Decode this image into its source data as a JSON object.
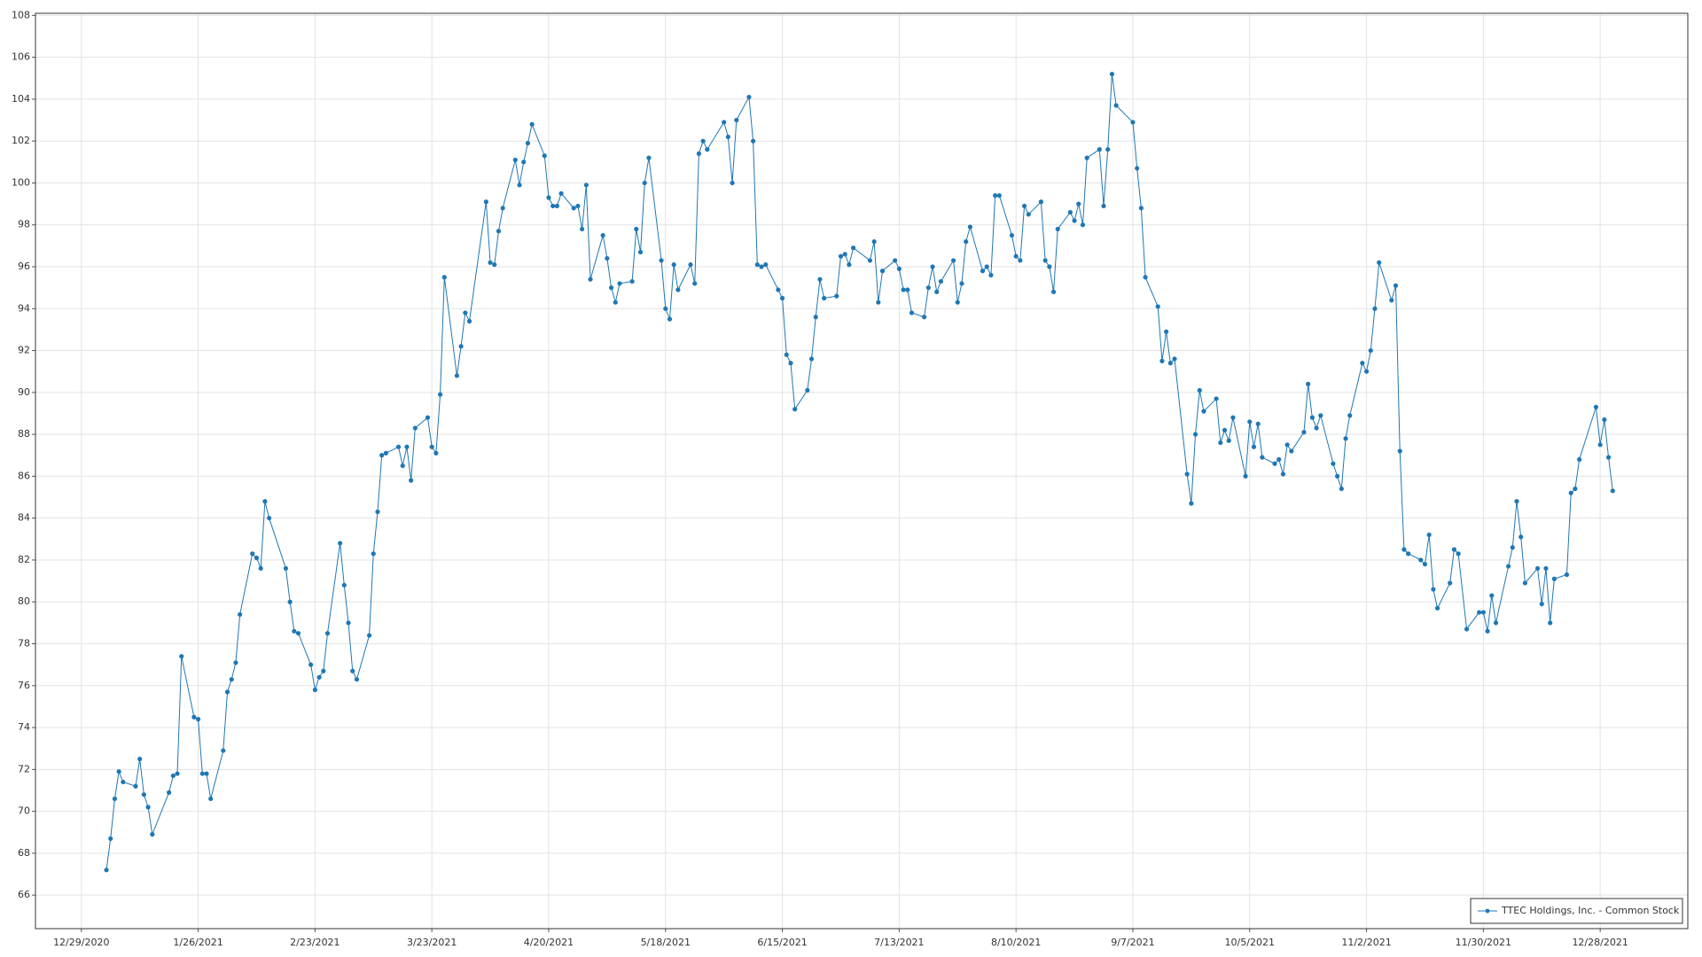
{
  "chart_data": {
    "type": "line",
    "x": [
      "1/4/2021",
      "1/5/2021",
      "1/6/2021",
      "1/7/2021",
      "1/8/2021",
      "1/11/2021",
      "1/12/2021",
      "1/13/2021",
      "1/14/2021",
      "1/15/2021",
      "1/19/2021",
      "1/20/2021",
      "1/21/2021",
      "1/22/2021",
      "1/25/2021",
      "1/26/2021",
      "1/27/2021",
      "1/28/2021",
      "1/29/2021",
      "2/1/2021",
      "2/2/2021",
      "2/3/2021",
      "2/4/2021",
      "2/5/2021",
      "2/8/2021",
      "2/9/2021",
      "2/10/2021",
      "2/11/2021",
      "2/12/2021",
      "2/16/2021",
      "2/17/2021",
      "2/18/2021",
      "2/19/2021",
      "2/22/2021",
      "2/23/2021",
      "2/24/2021",
      "2/25/2021",
      "2/26/2021",
      "3/1/2021",
      "3/2/2021",
      "3/3/2021",
      "3/4/2021",
      "3/5/2021",
      "3/8/2021",
      "3/9/2021",
      "3/10/2021",
      "3/11/2021",
      "3/12/2021",
      "3/15/2021",
      "3/16/2021",
      "3/17/2021",
      "3/18/2021",
      "3/19/2021",
      "3/22/2021",
      "3/23/2021",
      "3/24/2021",
      "3/25/2021",
      "3/26/2021",
      "3/29/2021",
      "3/30/2021",
      "3/31/2021",
      "4/1/2021",
      "4/5/2021",
      "4/6/2021",
      "4/7/2021",
      "4/8/2021",
      "4/9/2021",
      "4/12/2021",
      "4/13/2021",
      "4/14/2021",
      "4/15/2021",
      "4/16/2021",
      "4/19/2021",
      "4/20/2021",
      "4/21/2021",
      "4/22/2021",
      "4/23/2021",
      "4/26/2021",
      "4/27/2021",
      "4/28/2021",
      "4/29/2021",
      "4/30/2021",
      "5/3/2021",
      "5/4/2021",
      "5/5/2021",
      "5/6/2021",
      "5/7/2021",
      "5/10/2021",
      "5/11/2021",
      "5/12/2021",
      "5/13/2021",
      "5/14/2021",
      "5/17/2021",
      "5/18/2021",
      "5/19/2021",
      "5/20/2021",
      "5/21/2021",
      "5/24/2021",
      "5/25/2021",
      "5/26/2021",
      "5/27/2021",
      "5/28/2021",
      "6/1/2021",
      "6/2/2021",
      "6/3/2021",
      "6/4/2021",
      "6/7/2021",
      "6/8/2021",
      "6/9/2021",
      "6/10/2021",
      "6/11/2021",
      "6/14/2021",
      "6/15/2021",
      "6/16/2021",
      "6/17/2021",
      "6/18/2021",
      "6/21/2021",
      "6/22/2021",
      "6/23/2021",
      "6/24/2021",
      "6/25/2021",
      "6/28/2021",
      "6/29/2021",
      "6/30/2021",
      "7/1/2021",
      "7/2/2021",
      "7/6/2021",
      "7/7/2021",
      "7/8/2021",
      "7/9/2021",
      "7/12/2021",
      "7/13/2021",
      "7/14/2021",
      "7/15/2021",
      "7/16/2021",
      "7/19/2021",
      "7/20/2021",
      "7/21/2021",
      "7/22/2021",
      "7/23/2021",
      "7/26/2021",
      "7/27/2021",
      "7/28/2021",
      "7/29/2021",
      "7/30/2021",
      "8/2/2021",
      "8/3/2021",
      "8/4/2021",
      "8/5/2021",
      "8/6/2021",
      "8/9/2021",
      "8/10/2021",
      "8/11/2021",
      "8/12/2021",
      "8/13/2021",
      "8/16/2021",
      "8/17/2021",
      "8/18/2021",
      "8/19/2021",
      "8/20/2021",
      "8/23/2021",
      "8/24/2021",
      "8/25/2021",
      "8/26/2021",
      "8/27/2021",
      "8/30/2021",
      "8/31/2021",
      "9/1/2021",
      "9/2/2021",
      "9/3/2021",
      "9/7/2021",
      "9/8/2021",
      "9/9/2021",
      "9/10/2021",
      "9/13/2021",
      "9/14/2021",
      "9/15/2021",
      "9/16/2021",
      "9/17/2021",
      "9/20/2021",
      "9/21/2021",
      "9/22/2021",
      "9/23/2021",
      "9/24/2021",
      "9/27/2021",
      "9/28/2021",
      "9/29/2021",
      "9/30/2021",
      "10/1/2021",
      "10/4/2021",
      "10/5/2021",
      "10/6/2021",
      "10/7/2021",
      "10/8/2021",
      "10/11/2021",
      "10/12/2021",
      "10/13/2021",
      "10/14/2021",
      "10/15/2021",
      "10/18/2021",
      "10/19/2021",
      "10/20/2021",
      "10/21/2021",
      "10/22/2021",
      "10/25/2021",
      "10/26/2021",
      "10/27/2021",
      "10/28/2021",
      "10/29/2021",
      "11/1/2021",
      "11/2/2021",
      "11/3/2021",
      "11/4/2021",
      "11/5/2021",
      "11/8/2021",
      "11/9/2021",
      "11/10/2021",
      "11/11/2021",
      "11/12/2021",
      "11/15/2021",
      "11/16/2021",
      "11/17/2021",
      "11/18/2021",
      "11/19/2021",
      "11/22/2021",
      "11/23/2021",
      "11/24/2021",
      "11/26/2021",
      "11/29/2021",
      "11/30/2021",
      "12/1/2021",
      "12/2/2021",
      "12/3/2021",
      "12/6/2021",
      "12/7/2021",
      "12/8/2021",
      "12/9/2021",
      "12/10/2021",
      "12/13/2021",
      "12/14/2021",
      "12/15/2021",
      "12/16/2021",
      "12/17/2021",
      "12/20/2021",
      "12/21/2021",
      "12/22/2021",
      "12/23/2021",
      "12/27/2021",
      "12/28/2021",
      "12/29/2021",
      "12/30/2021",
      "12/31/2021"
    ],
    "series": [
      {
        "name": "TTEC Holdings, Inc. - Common Stock",
        "color": "#1f77b4",
        "values": [
          67.2,
          68.7,
          70.6,
          71.9,
          71.4,
          71.2,
          72.5,
          70.8,
          70.2,
          68.9,
          70.9,
          71.7,
          71.8,
          77.4,
          74.5,
          74.4,
          71.8,
          71.8,
          70.6,
          72.9,
          75.7,
          76.3,
          77.1,
          79.4,
          82.3,
          82.1,
          81.6,
          84.8,
          84.0,
          81.6,
          80.0,
          78.6,
          78.5,
          77.0,
          75.8,
          76.4,
          76.7,
          78.5,
          82.8,
          80.8,
          79.0,
          76.7,
          76.3,
          78.4,
          82.3,
          84.3,
          87.0,
          87.1,
          87.4,
          86.5,
          87.4,
          85.8,
          88.3,
          88.8,
          87.4,
          87.1,
          89.9,
          95.5,
          90.8,
          92.2,
          93.8,
          93.4,
          99.1,
          96.2,
          96.1,
          97.7,
          98.8,
          101.1,
          99.9,
          101.0,
          101.9,
          102.8,
          101.3,
          99.3,
          98.9,
          98.9,
          99.5,
          98.8,
          98.9,
          97.8,
          99.9,
          95.4,
          97.5,
          96.4,
          95.0,
          94.3,
          95.2,
          95.3,
          97.8,
          96.7,
          100.0,
          101.2,
          96.3,
          94.0,
          93.5,
          96.1,
          94.9,
          96.1,
          95.2,
          101.4,
          102.0,
          101.6,
          102.9,
          102.2,
          100.0,
          103.0,
          104.1,
          102.0,
          96.1,
          96.0,
          96.1,
          94.9,
          94.5,
          91.8,
          91.4,
          89.2,
          90.1,
          91.6,
          93.6,
          95.4,
          94.5,
          94.6,
          96.5,
          96.6,
          96.1,
          96.9,
          96.3,
          97.2,
          94.3,
          95.8,
          96.3,
          95.9,
          94.9,
          94.9,
          93.8,
          93.6,
          95.0,
          96.0,
          94.8,
          95.3,
          96.3,
          94.3,
          95.2,
          97.2,
          97.9,
          95.8,
          96.0,
          95.6,
          99.4,
          99.4,
          97.5,
          96.5,
          96.3,
          98.9,
          98.5,
          99.1,
          96.3,
          96.0,
          94.8,
          97.8,
          98.6,
          98.2,
          99.0,
          98.0,
          101.2,
          101.6,
          98.9,
          101.6,
          105.2,
          103.7,
          102.9,
          100.7,
          98.8,
          95.5,
          94.1,
          91.5,
          92.9,
          91.4,
          91.6,
          86.1,
          84.7,
          88.0,
          90.1,
          89.1,
          89.7,
          87.6,
          88.2,
          87.7,
          88.8,
          86.0,
          88.6,
          87.4,
          88.5,
          86.9,
          86.6,
          86.8,
          86.1,
          87.5,
          87.2,
          88.1,
          90.4,
          88.8,
          88.3,
          88.9,
          86.6,
          86.0,
          85.4,
          87.8,
          88.9,
          91.4,
          91.0,
          92.0,
          94.0,
          96.2,
          94.4,
          95.1,
          87.2,
          82.5,
          82.3,
          82.0,
          81.8,
          83.2,
          80.6,
          79.7,
          80.9,
          82.5,
          82.3,
          78.7,
          79.5,
          79.5,
          78.6,
          80.3,
          79.0,
          81.7,
          82.6,
          84.8,
          83.1,
          80.9,
          81.6,
          79.9,
          81.6,
          79.0,
          81.1,
          81.3,
          85.2,
          85.4,
          86.8,
          89.3,
          87.5,
          88.7,
          86.9,
          85.3
        ]
      }
    ],
    "xlim": [
      "12/18/2020",
      "1/18/2022"
    ],
    "xticks": [
      "12/29/2020",
      "1/26/2021",
      "2/23/2021",
      "3/23/2021",
      "4/20/2021",
      "5/18/2021",
      "6/15/2021",
      "7/13/2021",
      "8/10/2021",
      "9/7/2021",
      "10/5/2021",
      "11/2/2021",
      "11/30/2021",
      "12/28/2021"
    ],
    "ylim": [
      64.4,
      108.1
    ],
    "yticks": [
      66,
      68,
      70,
      72,
      74,
      76,
      78,
      80,
      82,
      84,
      86,
      88,
      90,
      92,
      94,
      96,
      98,
      100,
      102,
      104,
      106,
      108
    ],
    "grid": true,
    "markers": true,
    "legend_position": "lower right"
  }
}
